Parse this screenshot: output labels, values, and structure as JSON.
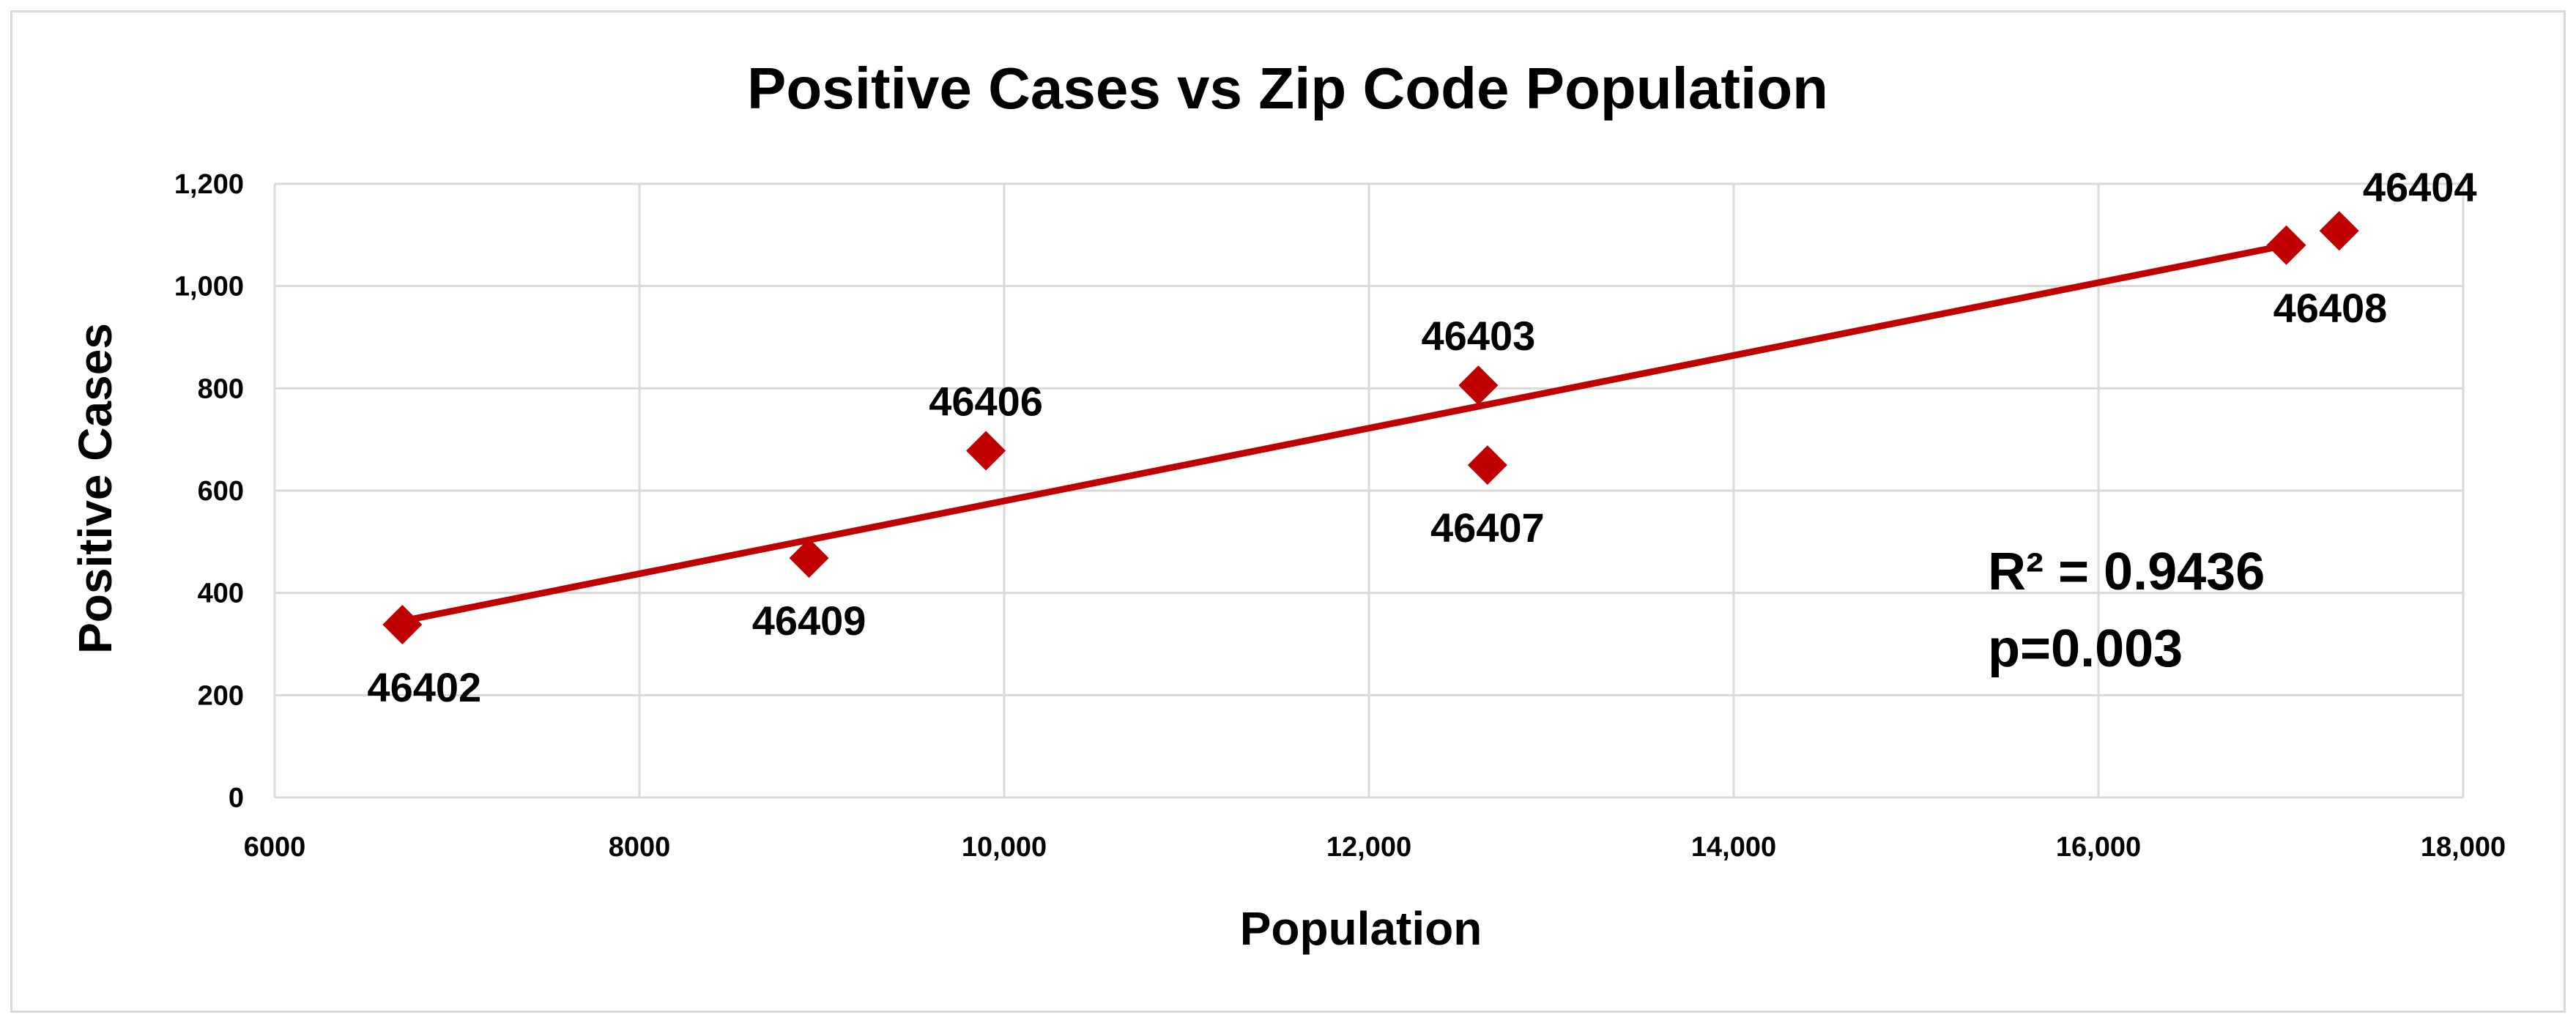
{
  "colors": {
    "marker": "#c00000",
    "trendline": "#c00000",
    "grid": "#d9d9d9",
    "text": "#000000"
  },
  "chart_data": {
    "type": "scatter",
    "title": "Positive Cases vs Zip Code Population",
    "xlabel": "Population",
    "ylabel": "Positive Cases",
    "xlim": [
      6000,
      18000
    ],
    "ylim": [
      0,
      1200
    ],
    "grid": true,
    "x_ticks": [
      {
        "value": 6000,
        "label": "6000"
      },
      {
        "value": 8000,
        "label": "8000"
      },
      {
        "value": 10000,
        "label": "10,000"
      },
      {
        "value": 12000,
        "label": "12,000"
      },
      {
        "value": 14000,
        "label": "14,000"
      },
      {
        "value": 16000,
        "label": "16,000"
      },
      {
        "value": 18000,
        "label": "18,000"
      }
    ],
    "y_ticks": [
      {
        "value": 0,
        "label": "0"
      },
      {
        "value": 200,
        "label": "200"
      },
      {
        "value": 400,
        "label": "400"
      },
      {
        "value": 600,
        "label": "600"
      },
      {
        "value": 800,
        "label": "800"
      },
      {
        "value": 1000,
        "label": "1,000"
      },
      {
        "value": 1200,
        "label": "1,200"
      }
    ],
    "points": [
      {
        "label": "46402",
        "x": 6700,
        "y": 338,
        "label_pos": "below"
      },
      {
        "label": "46409",
        "x": 8930,
        "y": 468,
        "label_pos": "below"
      },
      {
        "label": "46406",
        "x": 9900,
        "y": 678,
        "label_pos": "above"
      },
      {
        "label": "46403",
        "x": 12600,
        "y": 806,
        "label_pos": "above"
      },
      {
        "label": "46407",
        "x": 12650,
        "y": 650,
        "label_pos": "below"
      },
      {
        "label": "46408",
        "x": 17030,
        "y": 1080,
        "label_pos": "below"
      },
      {
        "label": "46404",
        "x": 17320,
        "y": 1108,
        "label_pos": "above"
      }
    ],
    "trendline": {
      "type": "linear",
      "x_start": 6700,
      "y_start": 345,
      "x_end": 17030,
      "y_end": 1080
    },
    "annotations": {
      "r_squared": "R² = 0.9436",
      "p_value": "p=0.003"
    }
  }
}
